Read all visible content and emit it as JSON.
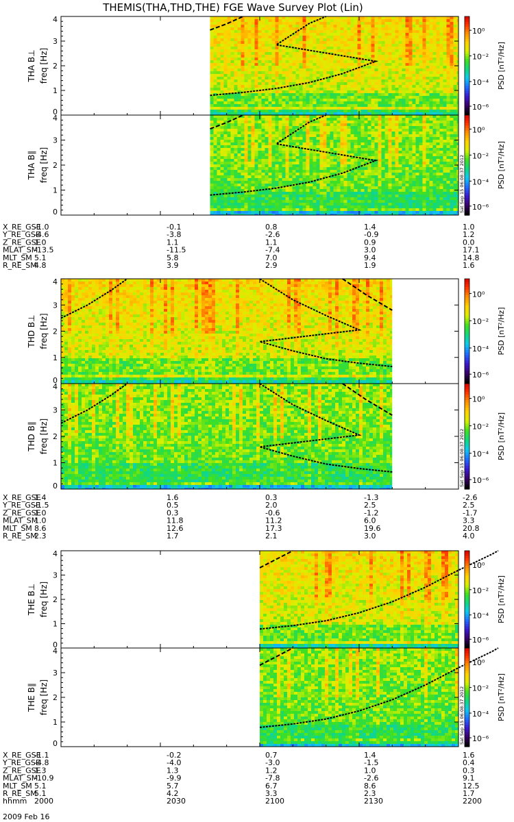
{
  "title": "THEMIS(THA,THD,THE) FGE Wave Survey Plot (Lin)",
  "stamp": "Sat Sep 15 06:08:37 2012",
  "colorbar": {
    "label": "PSD [nT²/Hz]",
    "tick_labels": [
      "10⁰",
      "10⁻²",
      "10⁻⁴",
      "10⁻⁶"
    ],
    "colors": [
      "#000000",
      "#3a006a",
      "#3a1ad0",
      "#1e6cff",
      "#10c8f0",
      "#10d880",
      "#40e020",
      "#d8f000",
      "#ffd000",
      "#ff9000",
      "#ff3000",
      "#d00000"
    ]
  },
  "chart_data": [
    {
      "type": "heatmap",
      "probe": "THA",
      "ylabel": "THA B⊥",
      "ylabel2": "freq [Hz]",
      "ylim": [
        0,
        4
      ],
      "yticks": [
        "0",
        "1",
        "2",
        "3",
        "4"
      ],
      "xlim": [
        "2000",
        "2200"
      ],
      "data_start": "2045",
      "data_end": "2200",
      "curve_main": [
        [
          2045,
          0.8
        ],
        [
          2055,
          0.92
        ],
        [
          2065,
          1.08
        ],
        [
          2075,
          1.32
        ],
        [
          2085,
          1.68
        ],
        [
          2095,
          2.18
        ],
        [
          2105,
          2.85
        ],
        [
          2115,
          3.72
        ],
        [
          2120,
          4.0
        ]
      ],
      "curve_short": [
        [
          2045,
          3.45
        ],
        [
          2050,
          3.7
        ],
        [
          2055,
          4.0
        ]
      ]
    },
    {
      "type": "heatmap",
      "probe": "THA",
      "ylabel": "THA B∥",
      "ylabel2": "freq [Hz]",
      "ylim": [
        0,
        4
      ],
      "yticks": [
        "0",
        "1",
        "2",
        "3",
        "4"
      ],
      "xlim": [
        "2000",
        "2200"
      ],
      "data_start": "2045",
      "data_end": "2200",
      "curve_main": [
        [
          2045,
          0.8
        ],
        [
          2055,
          0.92
        ],
        [
          2065,
          1.08
        ],
        [
          2075,
          1.32
        ],
        [
          2085,
          1.68
        ],
        [
          2095,
          2.18
        ],
        [
          2105,
          2.85
        ],
        [
          2115,
          3.72
        ],
        [
          2120,
          4.0
        ]
      ],
      "curve_short": [
        [
          2045,
          3.45
        ],
        [
          2050,
          3.7
        ],
        [
          2055,
          4.0
        ]
      ]
    },
    {
      "type": "heatmap",
      "probe": "THD",
      "ylabel": "THD B⊥",
      "ylabel2": "freq [Hz]",
      "ylim": [
        0,
        4
      ],
      "yticks": [
        "0",
        "1",
        "2",
        "3",
        "4"
      ],
      "xlim": [
        "2000",
        "2200"
      ],
      "data_start": "2000",
      "data_end": "2140",
      "curve_main": [
        [
          2000,
          2.5
        ],
        [
          2008,
          3.0
        ],
        [
          2015,
          3.55
        ],
        [
          2020,
          4.0
        ]
      ],
      "curve_mid": [
        [
          2060,
          4.0
        ],
        [
          2070,
          3.2
        ],
        [
          2080,
          2.6
        ],
        [
          2090,
          2.05
        ],
        [
          2100,
          1.6
        ],
        [
          2110,
          1.25
        ],
        [
          2120,
          0.95
        ],
        [
          2130,
          0.78
        ],
        [
          2140,
          0.65
        ]
      ],
      "curve_short": [
        [
          2125,
          4.0
        ],
        [
          2132,
          3.4
        ],
        [
          2140,
          2.8
        ]
      ]
    },
    {
      "type": "heatmap",
      "probe": "THD",
      "ylabel": "THD B∥",
      "ylabel2": "freq [Hz]",
      "ylim": [
        0,
        4
      ],
      "yticks": [
        "0",
        "1",
        "2",
        "3",
        "4"
      ],
      "xlim": [
        "2000",
        "2200"
      ],
      "data_start": "2000",
      "data_end": "2140",
      "curve_main": [
        [
          2000,
          2.5
        ],
        [
          2008,
          3.0
        ],
        [
          2015,
          3.55
        ],
        [
          2020,
          4.0
        ]
      ],
      "curve_mid": [
        [
          2060,
          4.0
        ],
        [
          2070,
          3.2
        ],
        [
          2080,
          2.6
        ],
        [
          2090,
          2.05
        ],
        [
          2100,
          1.6
        ],
        [
          2110,
          1.25
        ],
        [
          2120,
          0.95
        ],
        [
          2130,
          0.78
        ],
        [
          2140,
          0.65
        ]
      ],
      "curve_short": [
        [
          2125,
          4.0
        ],
        [
          2132,
          3.4
        ],
        [
          2140,
          2.8
        ]
      ]
    },
    {
      "type": "heatmap",
      "probe": "THE",
      "ylabel": "THE B⊥",
      "ylabel2": "freq [Hz]",
      "ylim": [
        0,
        4
      ],
      "yticks": [
        "0",
        "1",
        "2",
        "3",
        "4"
      ],
      "xlim": [
        "2000",
        "2200"
      ],
      "data_start": "2100",
      "data_end": "2200",
      "curve_main": [
        [
          2100,
          0.78
        ],
        [
          2110,
          0.92
        ],
        [
          2120,
          1.12
        ],
        [
          2130,
          1.45
        ],
        [
          2140,
          1.9
        ],
        [
          2150,
          2.5
        ],
        [
          2160,
          3.2
        ],
        [
          2170,
          3.85
        ],
        [
          2172,
          4.0
        ]
      ],
      "curve_short": [
        [
          2100,
          3.3
        ],
        [
          2105,
          3.65
        ],
        [
          2110,
          4.0
        ]
      ]
    },
    {
      "type": "heatmap",
      "probe": "THE",
      "ylabel": "THE B∥",
      "ylabel2": "freq [Hz]",
      "ylim": [
        0,
        4
      ],
      "yticks": [
        "0",
        "1",
        "2",
        "3",
        "4"
      ],
      "xlim": [
        "2000",
        "2200"
      ],
      "data_start": "2100",
      "data_end": "2200",
      "curve_main": [
        [
          2100,
          0.78
        ],
        [
          2110,
          0.92
        ],
        [
          2120,
          1.12
        ],
        [
          2130,
          1.45
        ],
        [
          2140,
          1.9
        ],
        [
          2150,
          2.5
        ],
        [
          2160,
          3.2
        ],
        [
          2170,
          3.85
        ],
        [
          2172,
          4.0
        ]
      ],
      "curve_short": [
        [
          2100,
          3.3
        ],
        [
          2105,
          3.65
        ],
        [
          2110,
          4.0
        ]
      ]
    }
  ],
  "ephemeris": [
    {
      "probe": "THA",
      "rows": [
        {
          "label": "X_RE_GSE",
          "values": [
            "-1.0",
            "-0.1",
            "0.8",
            "1.4",
            "1.0"
          ]
        },
        {
          "label": "Y_RE_GSE",
          "values": [
            "-4.6",
            "-3.8",
            "-2.6",
            "-0.9",
            "1.2"
          ]
        },
        {
          "label": "Z_RE_GSE",
          "values": [
            "1.0",
            "1.1",
            "1.1",
            "0.9",
            "0.0"
          ]
        },
        {
          "label": "MLAT_SM",
          "values": [
            "-13.5",
            "-11.5",
            "-7.4",
            "3.0",
            "17.1"
          ]
        },
        {
          "label": "MLT_SM",
          "values": [
            "5.1",
            "5.8",
            "7.0",
            "9.4",
            "14.8"
          ]
        },
        {
          "label": "R_RE_SM",
          "values": [
            "4.8",
            "3.9",
            "2.9",
            "1.9",
            "1.6"
          ]
        }
      ]
    },
    {
      "probe": "THD",
      "rows": [
        {
          "label": "X_RE_GSE",
          "values": [
            "1.4",
            "1.6",
            "0.3",
            "-1.3",
            "-2.6"
          ]
        },
        {
          "label": "Y_RE_GSE",
          "values": [
            "-1.5",
            "0.5",
            "2.0",
            "2.5",
            "2.5"
          ]
        },
        {
          "label": "Z_RE_GSE",
          "values": [
            "1.0",
            "0.3",
            "-0.6",
            "-1.2",
            "-1.7"
          ]
        },
        {
          "label": "MLAT_SM",
          "values": [
            "1.0",
            "11.8",
            "11.2",
            "6.0",
            "3.3"
          ]
        },
        {
          "label": "MLT_SM",
          "values": [
            "8.6",
            "12.6",
            "17.3",
            "19.6",
            "20.8"
          ]
        },
        {
          "label": "R_RE_SM",
          "values": [
            "2.3",
            "1.7",
            "2.1",
            "3.0",
            "4.0"
          ]
        }
      ]
    },
    {
      "probe": "THE",
      "rows": [
        {
          "label": "X_RE_GSE",
          "values": [
            "-1.1",
            "-0.2",
            "0.7",
            "1.4",
            "1.6"
          ]
        },
        {
          "label": "Y_RE_GSE",
          "values": [
            "-4.8",
            "-4.0",
            "-3.0",
            "-1.5",
            "0.4"
          ]
        },
        {
          "label": "Z_RE_GSE",
          "values": [
            "1.3",
            "1.3",
            "1.2",
            "1.0",
            "0.3"
          ]
        },
        {
          "label": "MLAT_SM",
          "values": [
            "-10.9",
            "-9.9",
            "-7.8",
            "-2.6",
            "9.1"
          ]
        },
        {
          "label": "MLT_SM",
          "values": [
            "5.1",
            "5.7",
            "6.7",
            "8.6",
            "12.5"
          ]
        },
        {
          "label": "R_RE_SM",
          "values": [
            "5.1",
            "4.2",
            "3.3",
            "2.3",
            "1.7"
          ]
        },
        {
          "label": "hhmm",
          "values": [
            "2000",
            "2030",
            "2100",
            "2130",
            "2200"
          ]
        }
      ]
    }
  ],
  "date": "2009 Feb 16"
}
